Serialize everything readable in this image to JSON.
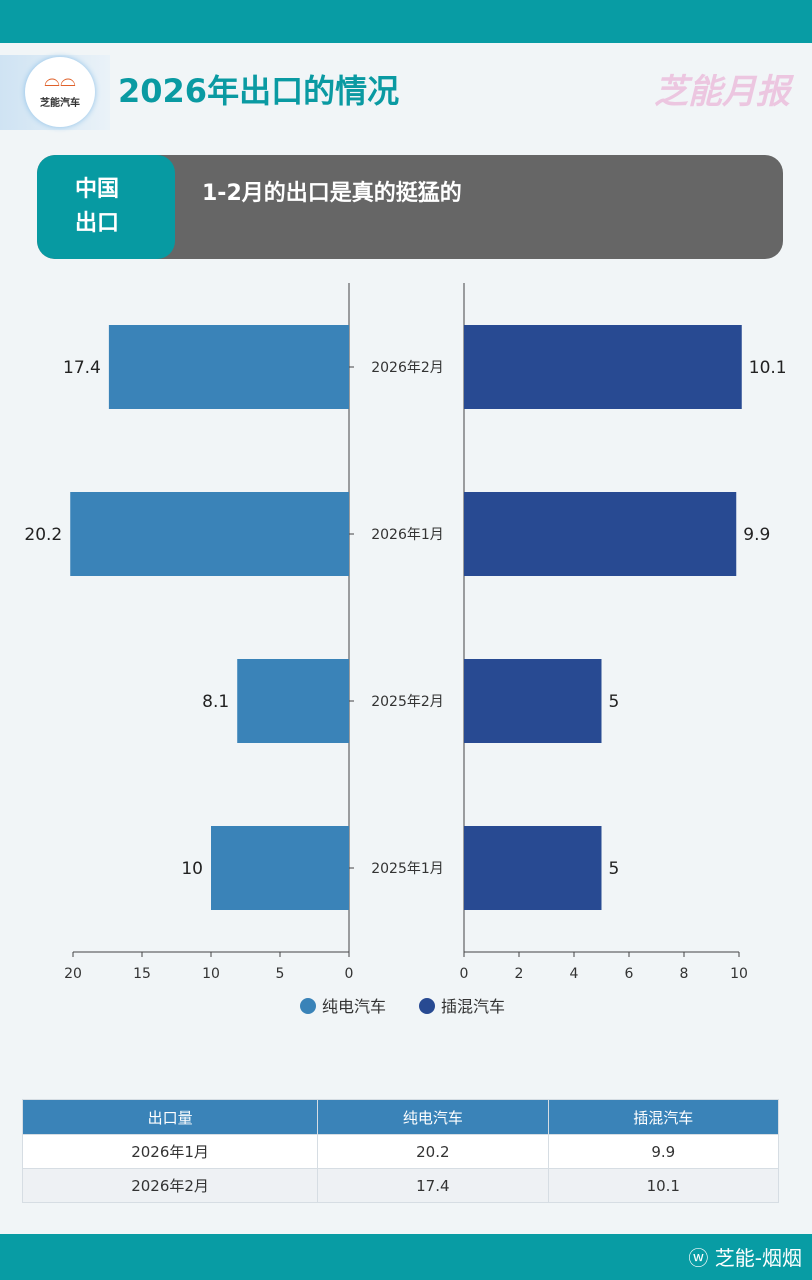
{
  "header": {
    "title": "2026年出口的情况",
    "brand": "芝能月报",
    "logo_text": "芝能汽车"
  },
  "banner": {
    "tag_line1": "中国",
    "tag_line2": "出口",
    "headline": "1-2月的出口是真的挺猛的"
  },
  "chart_data": {
    "type": "bar",
    "orientation": "horizontal-butterfly",
    "categories": [
      "2026年2月",
      "2026年1月",
      "2025年2月",
      "2025年1月"
    ],
    "series": [
      {
        "name": "纯电汽车",
        "values": [
          17.4,
          20.2,
          8.1,
          10
        ],
        "color": "#3a83b8",
        "xlim": [
          0,
          20
        ],
        "ticks": [
          20,
          15,
          10,
          5,
          0
        ],
        "side": "left"
      },
      {
        "name": "插混汽车",
        "values": [
          10.1,
          9.9,
          5,
          5
        ],
        "color": "#284a92",
        "xlim": [
          0,
          10
        ],
        "ticks": [
          0,
          2,
          4,
          6,
          8,
          10
        ],
        "side": "right"
      }
    ],
    "legend": "bottom-center"
  },
  "table": {
    "headers": [
      "出口量",
      "纯电汽车",
      "插混汽车"
    ],
    "rows": [
      [
        "2026年1月",
        "20.2",
        "9.9"
      ],
      [
        "2026年2月",
        "17.4",
        "10.1"
      ]
    ]
  },
  "footer": {
    "watermark": "芝能-烟烟",
    "icon": "weibo-icon"
  }
}
